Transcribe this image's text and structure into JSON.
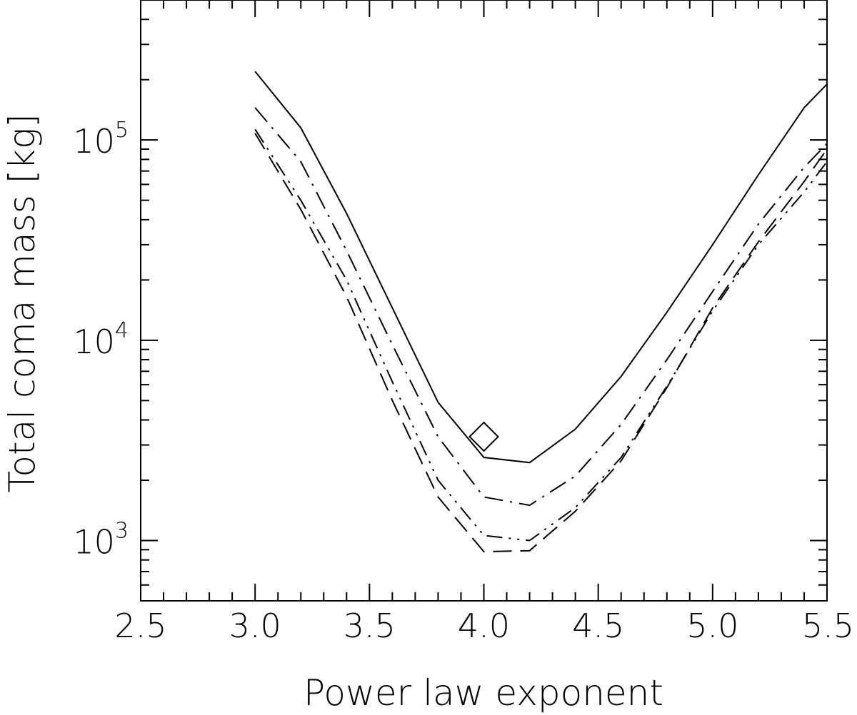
{
  "chart_data": {
    "type": "line",
    "title": "",
    "xlabel": "Power law exponent",
    "ylabel": "Total coma mass [kg]",
    "xlim": [
      2.5,
      5.5
    ],
    "ylim": [
      500,
      500000
    ],
    "yscale": "log",
    "grid": false,
    "x_ticks": [
      2.5,
      3.0,
      3.5,
      4.0,
      4.5,
      5.0,
      5.5
    ],
    "x_tick_labels": [
      "2.5",
      "3.0",
      "3.5",
      "4.0",
      "4.5",
      "5.0",
      "5.5"
    ],
    "y_ticks": [
      1000,
      10000,
      100000
    ],
    "y_tick_labels": [
      {
        "base": "10",
        "exp": "3"
      },
      {
        "base": "10",
        "exp": "4"
      },
      {
        "base": "10",
        "exp": "5"
      }
    ],
    "series": [
      {
        "style": "solid",
        "x": [
          3.0,
          3.2,
          3.4,
          3.6,
          3.8,
          4.0,
          4.2,
          4.4,
          4.6,
          4.8,
          5.0,
          5.2,
          5.4,
          5.5
        ],
        "y": [
          220000,
          115000,
          43000,
          14500,
          4900,
          2600,
          2450,
          3600,
          6600,
          13800,
          30000,
          67000,
          145000,
          190000
        ]
      },
      {
        "style": "dash-dot",
        "x": [
          3.0,
          3.2,
          3.4,
          3.6,
          3.8,
          4.0,
          4.2,
          4.4,
          4.6,
          4.8,
          5.0,
          5.2,
          5.4,
          5.5
        ],
        "y": [
          145000,
          78000,
          28000,
          9500,
          3300,
          1650,
          1500,
          2100,
          3800,
          8000,
          17500,
          38000,
          73000,
          96000
        ]
      },
      {
        "style": "dash-dot-dot",
        "x": [
          3.0,
          3.2,
          3.4,
          3.6,
          3.8,
          4.0,
          4.2,
          4.4,
          4.6,
          4.8,
          5.0,
          5.2,
          5.4,
          5.5
        ],
        "y": [
          113000,
          50000,
          20000,
          6200,
          2000,
          1060,
          1000,
          1460,
          2600,
          5900,
          14000,
          30000,
          55000,
          78000
        ]
      },
      {
        "style": "long-dash",
        "x": [
          3.0,
          3.2,
          3.4,
          3.6,
          3.8,
          4.0,
          4.2,
          4.4,
          4.6,
          4.8,
          5.0,
          5.2,
          5.4,
          5.5
        ],
        "y": [
          108000,
          45000,
          16500,
          5000,
          1650,
          880,
          890,
          1400,
          2500,
          5800,
          14500,
          31000,
          62000,
          90000
        ]
      }
    ],
    "markers": [
      {
        "shape": "diamond",
        "x": 4.0,
        "y": 3300
      }
    ]
  }
}
